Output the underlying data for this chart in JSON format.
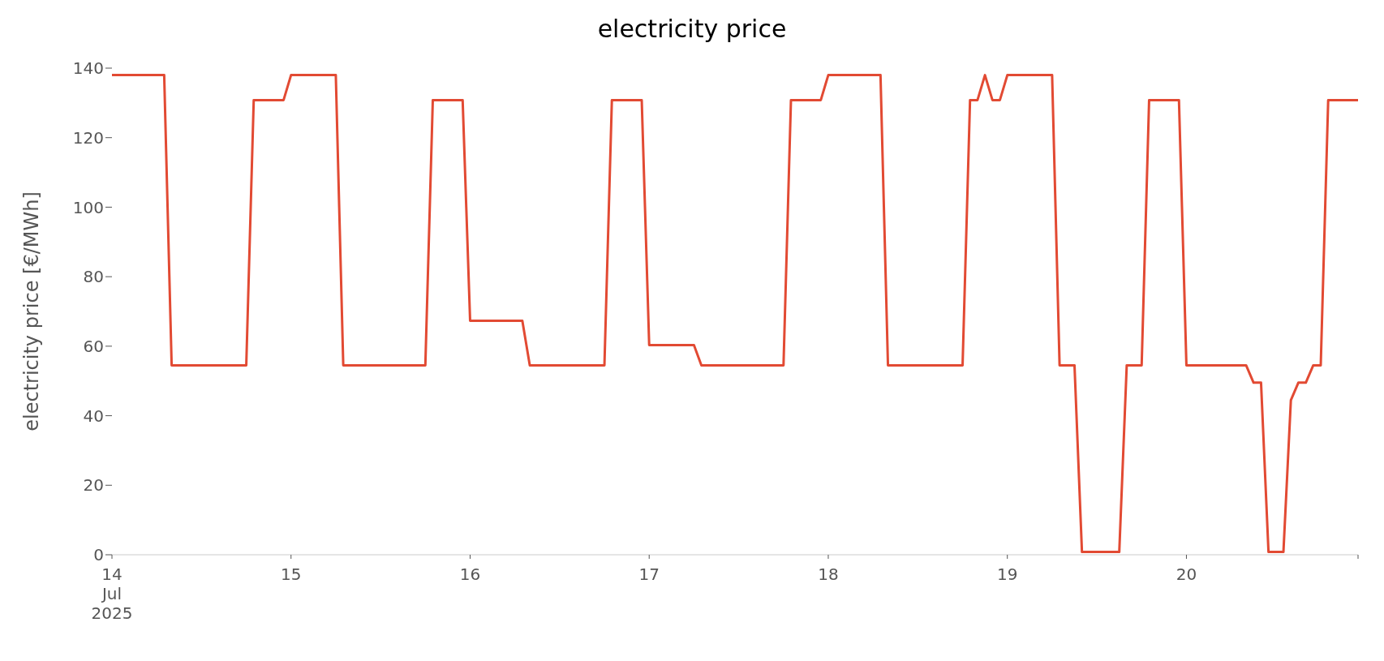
{
  "chart_data": {
    "type": "line",
    "title": "electricity price",
    "ylabel": "electricity price [€/MWh]",
    "x": [
      "2025-07-14T00:00",
      "2025-07-14T07:00",
      "2025-07-14T08:00",
      "2025-07-14T18:00",
      "2025-07-14T19:00",
      "2025-07-14T23:00",
      "2025-07-15T00:00",
      "2025-07-15T06:00",
      "2025-07-15T07:00",
      "2025-07-15T18:00",
      "2025-07-15T19:00",
      "2025-07-15T23:00",
      "2025-07-16T00:00",
      "2025-07-16T07:00",
      "2025-07-16T08:00",
      "2025-07-16T18:00",
      "2025-07-16T19:00",
      "2025-07-16T23:00",
      "2025-07-17T00:00",
      "2025-07-17T06:00",
      "2025-07-17T07:00",
      "2025-07-17T18:00",
      "2025-07-17T19:00",
      "2025-07-17T23:00",
      "2025-07-18T00:00",
      "2025-07-18T07:00",
      "2025-07-18T08:00",
      "2025-07-18T18:00",
      "2025-07-18T19:00",
      "2025-07-18T20:00",
      "2025-07-18T21:00",
      "2025-07-18T22:00",
      "2025-07-18T23:00",
      "2025-07-19T00:00",
      "2025-07-19T06:00",
      "2025-07-19T07:00",
      "2025-07-19T09:00",
      "2025-07-19T10:00",
      "2025-07-19T15:00",
      "2025-07-19T16:00",
      "2025-07-19T18:00",
      "2025-07-19T19:00",
      "2025-07-19T23:00",
      "2025-07-20T00:00",
      "2025-07-20T08:00",
      "2025-07-20T09:00",
      "2025-07-20T10:00",
      "2025-07-20T11:00",
      "2025-07-20T13:00",
      "2025-07-20T14:00",
      "2025-07-20T15:00",
      "2025-07-20T16:00",
      "2025-07-20T17:00",
      "2025-07-20T18:00",
      "2025-07-20T19:00",
      "2025-07-20T23:00"
    ],
    "series": [
      {
        "color": "#e24a33",
        "values": [
          138,
          138,
          54.5,
          54.5,
          130.8,
          130.8,
          138,
          138,
          54.5,
          54.5,
          130.8,
          130.8,
          67.3,
          67.3,
          54.5,
          54.5,
          130.8,
          130.8,
          60.3,
          60.3,
          54.5,
          54.5,
          130.8,
          130.8,
          138,
          138,
          54.5,
          54.5,
          130.8,
          130.8,
          138,
          130.8,
          130.8,
          138,
          138,
          54.5,
          54.5,
          0.8,
          0.8,
          54.5,
          54.5,
          130.8,
          130.8,
          54.5,
          54.5,
          49.5,
          49.5,
          0.8,
          0.8,
          44.5,
          49.5,
          49.5,
          54.5,
          54.5,
          130.8,
          130.8
        ]
      }
    ],
    "xlim": [
      "2025-07-14T00:00",
      "2025-07-20T23:00"
    ],
    "xticks": [
      {
        "value": "2025-07-14",
        "label": "14\nJul\n2025"
      },
      {
        "value": "2025-07-15",
        "label": "15"
      },
      {
        "value": "2025-07-16",
        "label": "16"
      },
      {
        "value": "2025-07-17",
        "label": "17"
      },
      {
        "value": "2025-07-18",
        "label": "18"
      },
      {
        "value": "2025-07-19",
        "label": "19"
      },
      {
        "value": "2025-07-20",
        "label": "20"
      },
      {
        "value": "2025-07-20T23:00",
        "label": null
      }
    ],
    "ylim": [
      0,
      140
    ],
    "yticks": [
      0,
      20,
      40,
      60,
      80,
      100,
      120,
      140
    ],
    "grid": false,
    "legend": false,
    "marker": "none",
    "line_style": "solid"
  }
}
